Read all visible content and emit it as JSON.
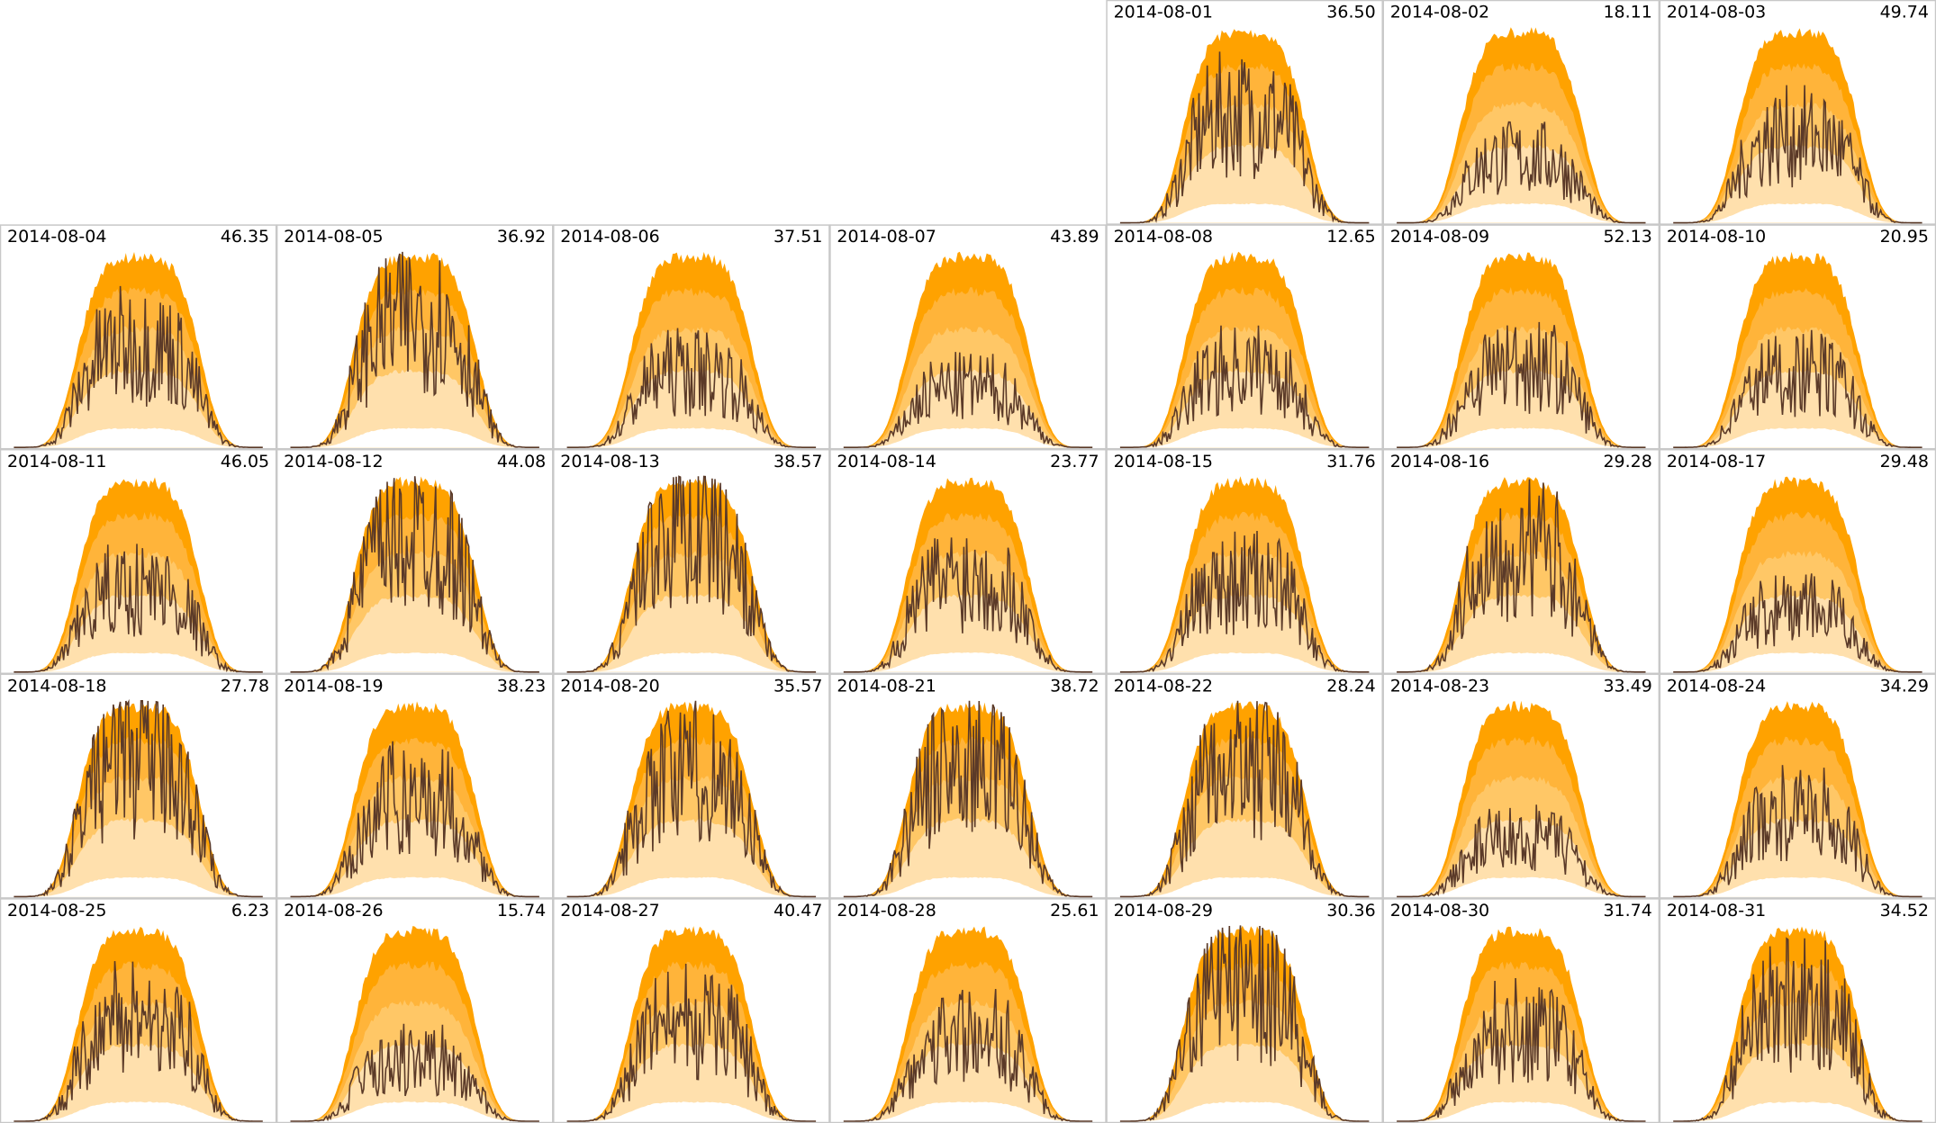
{
  "days": [
    {
      "date": "2014-08-01",
      "value": "36.50"
    },
    {
      "date": "2014-08-02",
      "value": "18.11"
    },
    {
      "date": "2014-08-03",
      "value": "49.74"
    },
    {
      "date": "2014-08-04",
      "value": "46.35"
    },
    {
      "date": "2014-08-05",
      "value": "36.92"
    },
    {
      "date": "2014-08-06",
      "value": "37.51"
    },
    {
      "date": "2014-08-07",
      "value": "43.89"
    },
    {
      "date": "2014-08-08",
      "value": "12.65"
    },
    {
      "date": "2014-08-09",
      "value": "52.13"
    },
    {
      "date": "2014-08-10",
      "value": "20.95"
    },
    {
      "date": "2014-08-11",
      "value": "46.05"
    },
    {
      "date": "2014-08-12",
      "value": "44.08"
    },
    {
      "date": "2014-08-13",
      "value": "38.57"
    },
    {
      "date": "2014-08-14",
      "value": "23.77"
    },
    {
      "date": "2014-08-15",
      "value": "31.76"
    },
    {
      "date": "2014-08-16",
      "value": "29.28"
    },
    {
      "date": "2014-08-17",
      "value": "29.48"
    },
    {
      "date": "2014-08-18",
      "value": "27.78"
    },
    {
      "date": "2014-08-19",
      "value": "38.23"
    },
    {
      "date": "2014-08-20",
      "value": "35.57"
    },
    {
      "date": "2014-08-21",
      "value": "38.72"
    },
    {
      "date": "2014-08-22",
      "value": "28.24"
    },
    {
      "date": "2014-08-23",
      "value": "33.49"
    },
    {
      "date": "2014-08-24",
      "value": "34.29"
    },
    {
      "date": "2014-08-25",
      "value": "6.23"
    },
    {
      "date": "2014-08-26",
      "value": "15.74"
    },
    {
      "date": "2014-08-27",
      "value": "40.47"
    },
    {
      "date": "2014-08-28",
      "value": "25.61"
    },
    {
      "date": "2014-08-29",
      "value": "30.36"
    },
    {
      "date": "2014-08-30",
      "value": "31.74"
    },
    {
      "date": "2014-08-31",
      "value": "34.52"
    }
  ]
}
